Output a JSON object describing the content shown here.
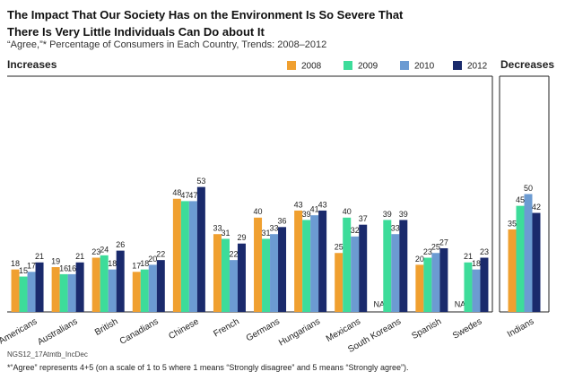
{
  "title": "The Impact That Our Society Has on the Environment Is So Severe That There Is Very Little Individuals Can Do about It",
  "subtitle": "“Agree,”* Percentage of Consumers in Each Country, Trends: 2008–2012",
  "source": "NGS12_17Atmtb_IncDec",
  "note": "*“Agree” represents 4+5 (on a scale of 1 to 5 where 1 means “Strongly disagree” and 5 means “Strongly agree”).",
  "chart_data": [
    {
      "type": "bar",
      "title": "Increases",
      "categories": [
        "Americans",
        "Australians",
        "British",
        "Canadians",
        "Chinese",
        "French",
        "Germans",
        "Hungarians",
        "Mexicans",
        "South Koreans",
        "Spanish",
        "Swedes"
      ],
      "ylim": [
        0,
        100
      ],
      "series": [
        {
          "name": "2008",
          "color": "#f0a030",
          "values": [
            18,
            19,
            23,
            17,
            48,
            33,
            40,
            43,
            25,
            null,
            20,
            null
          ],
          "value_labels": [
            "18",
            "19",
            "23",
            "17",
            "48",
            "33",
            "40",
            "43",
            "25",
            "NA",
            "20",
            "NA"
          ]
        },
        {
          "name": "2009",
          "color": "#3ddc9a",
          "values": [
            15,
            16,
            24,
            18,
            47,
            31,
            31,
            39,
            40,
            39,
            23,
            21
          ]
        },
        {
          "name": "2010",
          "color": "#6c9bd2",
          "values": [
            17,
            16,
            18,
            20,
            47,
            22,
            33,
            41,
            32,
            33,
            25,
            18
          ]
        },
        {
          "name": "2012",
          "color": "#1a2a6c",
          "values": [
            21,
            21,
            26,
            22,
            53,
            29,
            36,
            43,
            37,
            39,
            27,
            23
          ]
        }
      ]
    },
    {
      "type": "bar",
      "title": "Decreases",
      "categories": [
        "Indians"
      ],
      "ylim": [
        0,
        100
      ],
      "series": [
        {
          "color": "#f0a030",
          "values": [
            35
          ]
        },
        {
          "color": "#3ddc9a",
          "values": [
            45
          ]
        },
        {
          "color": "#6c9bd2",
          "values": [
            50
          ]
        },
        {
          "color": "#1a2a6c",
          "values": [
            42
          ]
        }
      ]
    }
  ]
}
